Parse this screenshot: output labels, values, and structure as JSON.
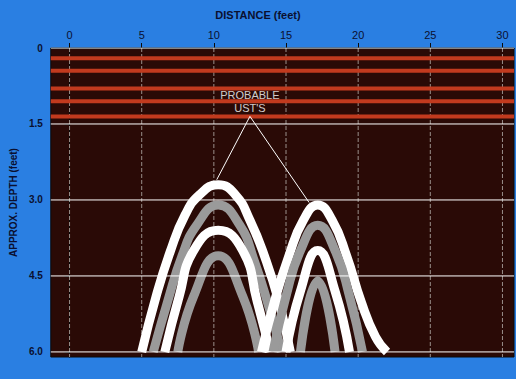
{
  "chart_data": {
    "type": "radargram",
    "title": "DISTANCE (feet)",
    "y_label": "APPROX. DEPTH (feet)",
    "xlim": [
      -1.3,
      30.8
    ],
    "xticks": [
      0,
      5,
      10,
      15,
      20,
      25,
      30
    ],
    "ylim": [
      0,
      6.1
    ],
    "yticks": [
      0,
      1.5,
      {
        "value": 3,
        "label": "3.0"
      },
      4.5,
      {
        "value": 6,
        "label": "6.0"
      }
    ],
    "grid": true,
    "annotations": [
      {
        "text": "PROBABLE\nUST'S",
        "x": 12.5,
        "y": 1.35,
        "points_to": [
          [
            10.2,
            2.6
          ],
          [
            16.6,
            3.05
          ]
        ]
      }
    ],
    "reflectors": {
      "color": "#c23a1e",
      "values": [
        0.2,
        0.45,
        0.8,
        1.05,
        1.35
      ]
    },
    "series": [
      {
        "color": "#ffffff",
        "x": [
          5.0,
          6.0,
          7.0,
          8.0,
          9.0,
          10.3,
          11.5,
          12.5,
          13.5,
          14.5,
          15.3
        ],
        "values": [
          6.0,
          4.9,
          4.0,
          3.3,
          2.9,
          2.7,
          2.9,
          3.4,
          4.1,
          5.0,
          6.0
        ]
      },
      {
        "color": "#9a9a9a",
        "x": [
          5.8,
          6.8,
          7.8,
          8.8,
          10.3,
          11.8,
          12.8,
          13.8,
          14.7
        ],
        "values": [
          6.0,
          5.0,
          4.1,
          3.5,
          3.1,
          3.5,
          4.2,
          5.1,
          6.0
        ]
      },
      {
        "color": "#ffffff",
        "x": [
          6.6,
          7.6,
          8.6,
          10.3,
          12.0,
          13.0,
          13.9
        ],
        "values": [
          6.0,
          4.9,
          4.0,
          3.6,
          4.0,
          5.0,
          6.0
        ]
      },
      {
        "color": "#9a9a9a",
        "x": [
          7.5,
          8.6,
          10.3,
          12.0,
          13.1
        ],
        "values": [
          6.0,
          4.9,
          4.1,
          4.9,
          6.0
        ]
      },
      {
        "color": "#ffffff",
        "x": [
          13.3,
          14.2,
          15.2,
          16.2,
          17.2,
          18.2,
          19.2,
          20.2,
          21.2,
          22.0
        ],
        "values": [
          6.0,
          5.0,
          4.1,
          3.4,
          3.1,
          3.4,
          4.1,
          5.0,
          5.7,
          6.0
        ]
      },
      {
        "color": "#9a9a9a",
        "x": [
          14.1,
          15.0,
          16.0,
          17.2,
          18.4,
          19.4,
          20.3
        ],
        "values": [
          6.0,
          4.9,
          4.0,
          3.5,
          4.0,
          4.9,
          6.0
        ]
      },
      {
        "color": "#ffffff",
        "x": [
          15.0,
          16.0,
          17.2,
          18.4,
          19.4
        ],
        "values": [
          6.0,
          4.8,
          4.0,
          4.8,
          6.0
        ]
      },
      {
        "color": "#9a9a9a",
        "x": [
          16.0,
          17.2,
          18.4
        ],
        "values": [
          6.0,
          4.6,
          6.0
        ]
      }
    ]
  }
}
